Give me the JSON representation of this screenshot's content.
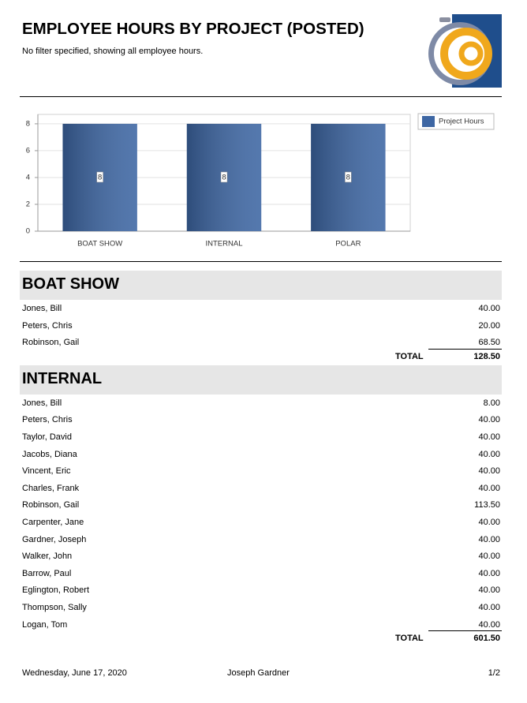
{
  "header": {
    "title": "EMPLOYEE HOURS BY PROJECT (POSTED)",
    "subtitle": "No filter specified, showing all employee hours."
  },
  "chart_data": {
    "type": "bar",
    "categories": [
      "BOAT SHOW",
      "INTERNAL",
      "POLAR"
    ],
    "series": [
      {
        "name": "Project Hours",
        "color": "#3d66a3",
        "values": [
          8,
          8,
          8
        ]
      }
    ],
    "ylim": [
      0,
      8.7
    ],
    "yticks": [
      0,
      2,
      4,
      6,
      8
    ],
    "grid": true,
    "legend": "right"
  },
  "sections": [
    {
      "title": "BOAT SHOW",
      "rows": [
        [
          "Jones, Bill",
          "40.00"
        ],
        [
          "Peters, Chris",
          "20.00"
        ],
        [
          "Robinson, Gail",
          "68.50"
        ]
      ],
      "total_label": "TOTAL",
      "total": "128.50"
    },
    {
      "title": "INTERNAL",
      "rows": [
        [
          "Jones, Bill",
          "8.00"
        ],
        [
          "Peters, Chris",
          "40.00"
        ],
        [
          "Taylor, David",
          "40.00"
        ],
        [
          "Jacobs, Diana",
          "40.00"
        ],
        [
          "Vincent, Eric",
          "40.00"
        ],
        [
          "Charles, Frank",
          "40.00"
        ],
        [
          "Robinson, Gail",
          "113.50"
        ],
        [
          "Carpenter, Jane",
          "40.00"
        ],
        [
          "Gardner, Joseph",
          "40.00"
        ],
        [
          "Walker, John",
          "40.00"
        ],
        [
          "Barrow, Paul",
          "40.00"
        ],
        [
          "Eglington, Robert",
          "40.00"
        ],
        [
          "Thompson, Sally",
          "40.00"
        ],
        [
          "Logan, Tom",
          "40.00"
        ]
      ],
      "total_label": "TOTAL",
      "total": "601.50"
    }
  ],
  "footer": {
    "date": "Wednesday, June 17, 2020",
    "user": "Joseph Gardner",
    "page": "1/2"
  }
}
